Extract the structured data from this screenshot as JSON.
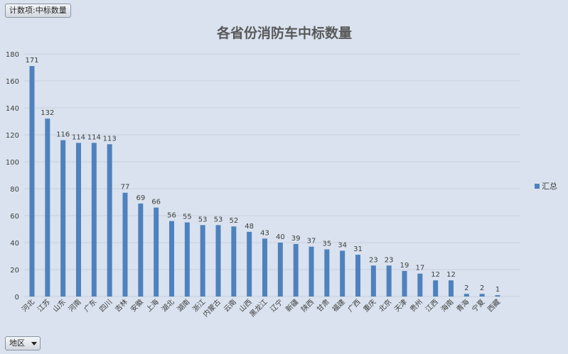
{
  "pivot": {
    "field_button": "计数项:中标数量",
    "filter_button": "地区"
  },
  "colors": {
    "bar": "#4f81bd",
    "grid": "#c8d0dc",
    "background": "#d9e2ee"
  },
  "chart_data": {
    "type": "bar",
    "title": "各省份消防车中标数量",
    "xlabel": "",
    "ylabel": "",
    "ylim": [
      0,
      180
    ],
    "yticks": [
      0,
      20,
      40,
      60,
      80,
      100,
      120,
      140,
      160,
      180
    ],
    "grid": true,
    "legend_position": "right",
    "categories": [
      "河北",
      "江苏",
      "山东",
      "河南",
      "广东",
      "四川",
      "吉林",
      "安徽",
      "上海",
      "湖北",
      "湖南",
      "浙江",
      "内蒙古",
      "云南",
      "山西",
      "黑龙江",
      "辽宁",
      "新疆",
      "陕西",
      "甘肃",
      "福建",
      "广西",
      "重庆",
      "北京",
      "天津",
      "贵州",
      "江西",
      "海南",
      "青海",
      "宁夏",
      "西藏"
    ],
    "series": [
      {
        "name": "汇总",
        "values": [
          171,
          132,
          116,
          114,
          114,
          113,
          77,
          69,
          66,
          56,
          55,
          53,
          53,
          52,
          48,
          43,
          40,
          39,
          37,
          35,
          34,
          31,
          23,
          23,
          19,
          17,
          12,
          12,
          2,
          2,
          1
        ]
      }
    ]
  }
}
